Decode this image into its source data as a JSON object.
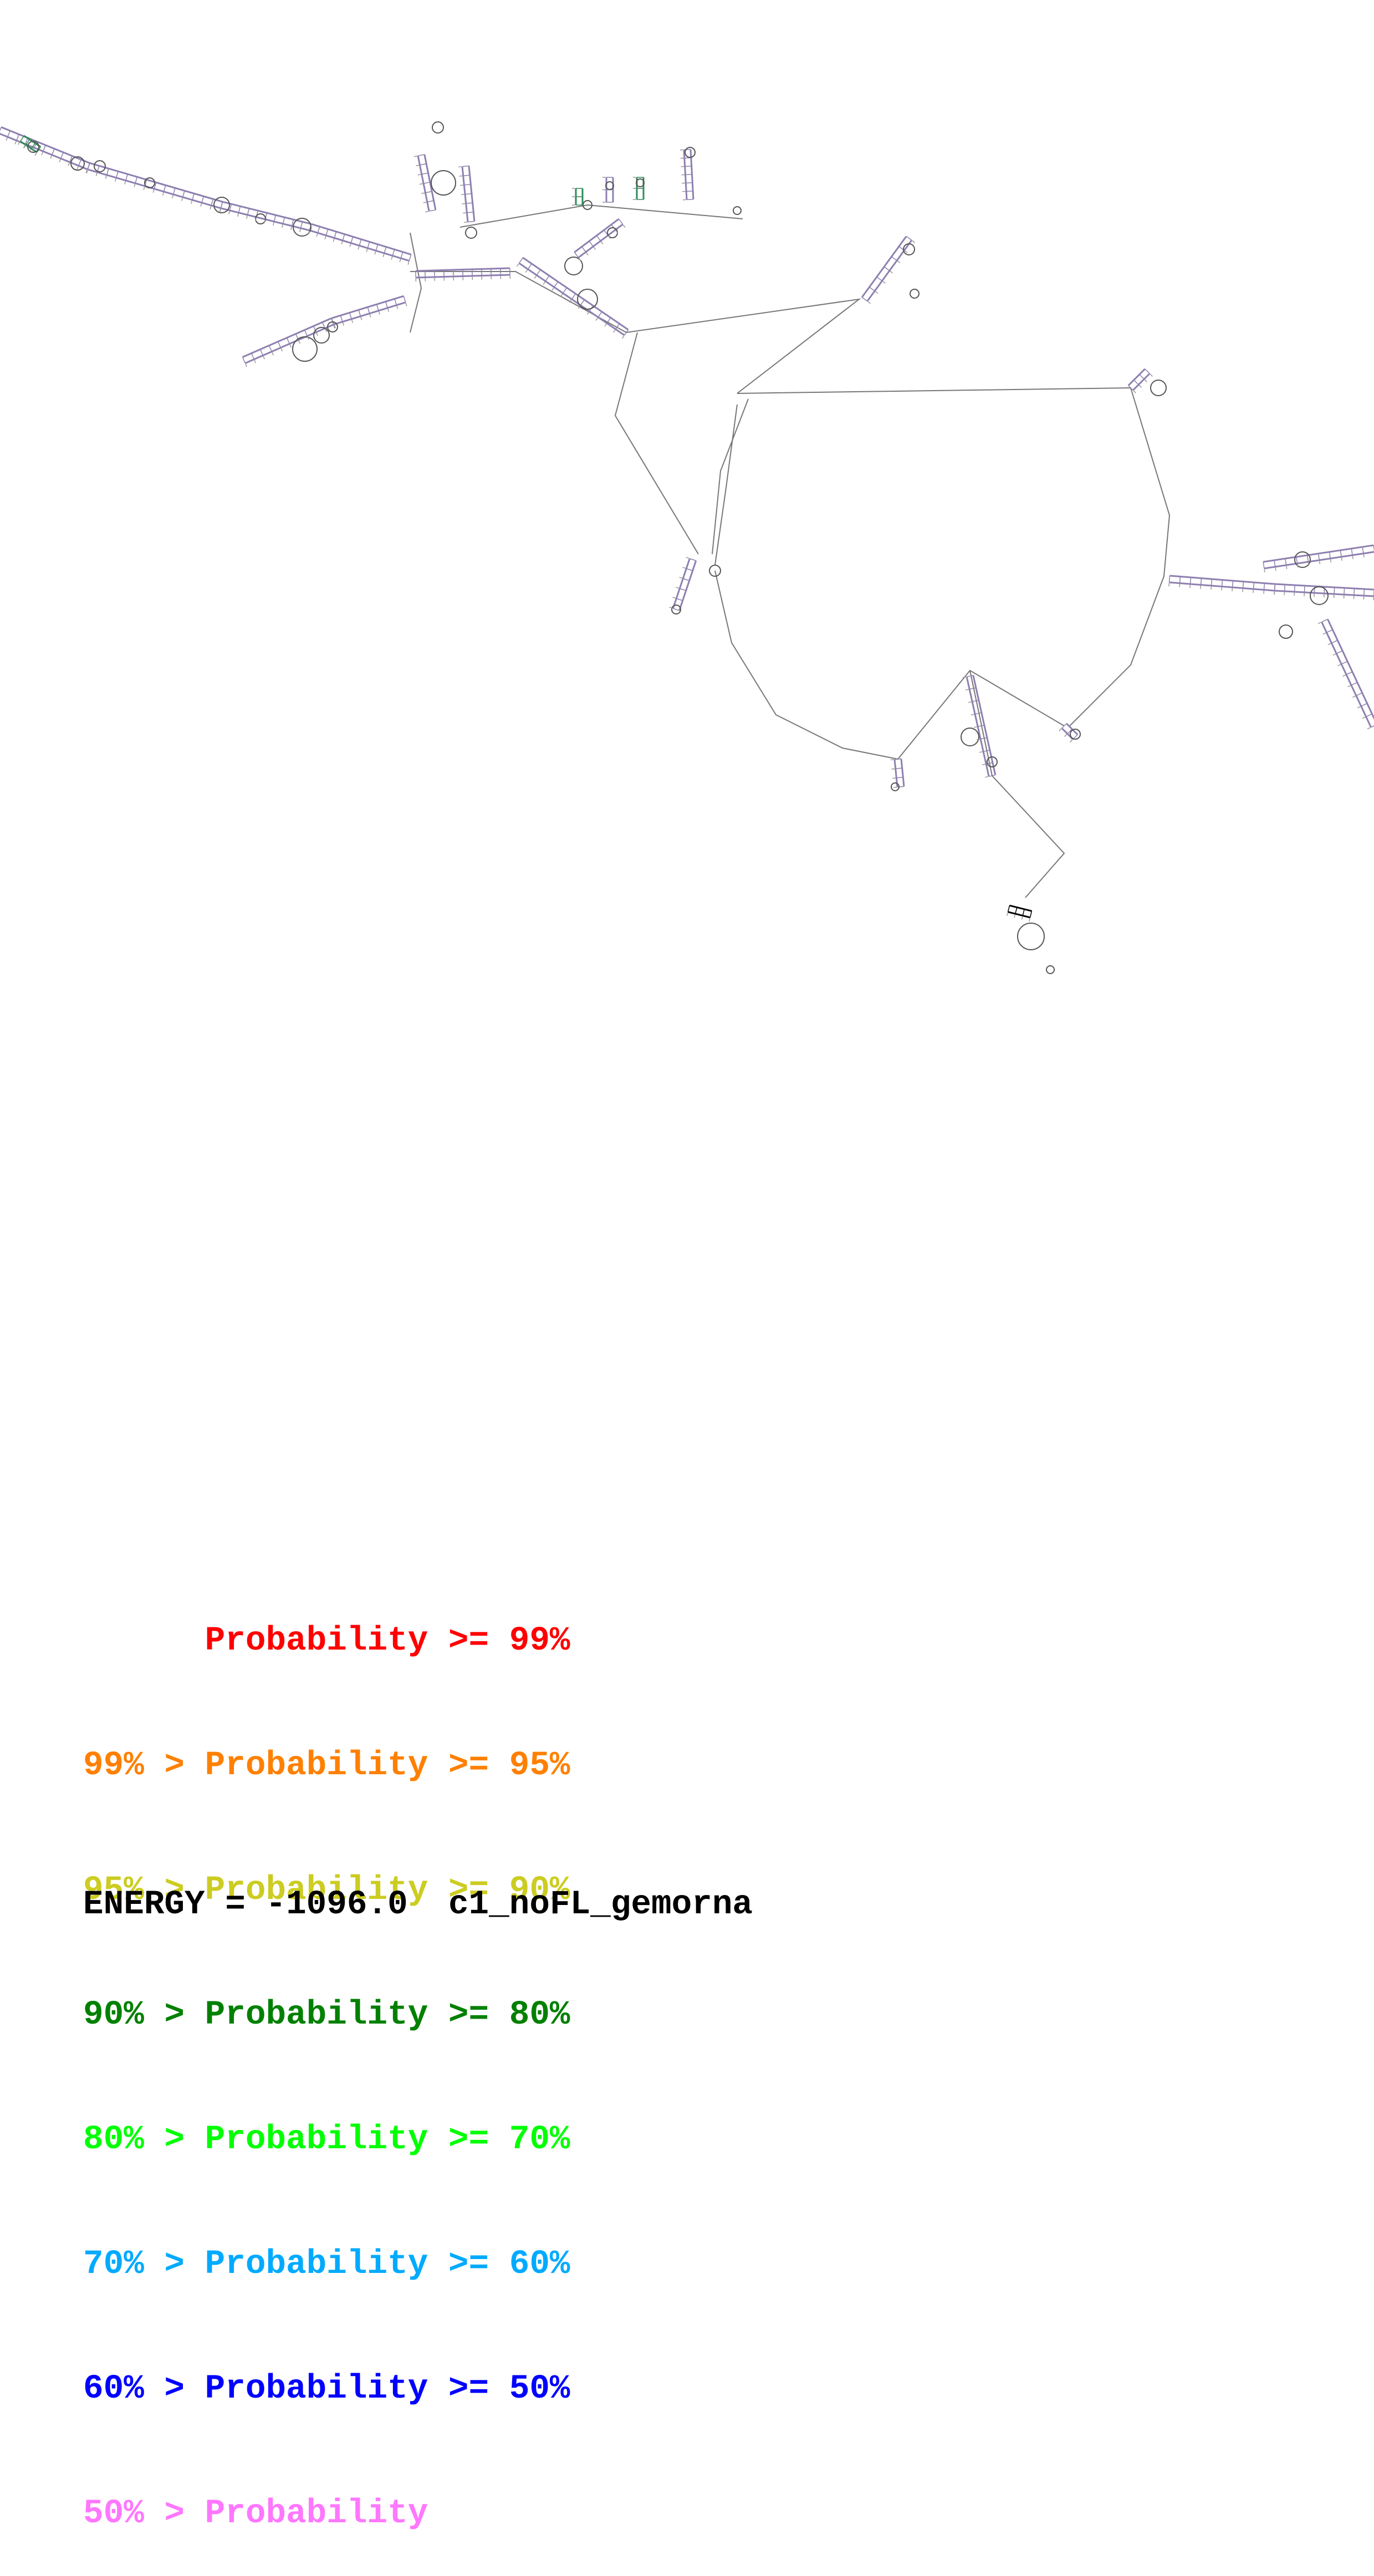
{
  "legend": [
    {
      "text": "      Probability >= 99%",
      "color": "#ff0000"
    },
    {
      "text": "99% > Probability >= 95%",
      "color": "#ff8000"
    },
    {
      "text": "95% > Probability >= 90%",
      "color": "#cccc22"
    },
    {
      "text": "90% > Probability >= 80%",
      "color": "#008000"
    },
    {
      "text": "80% > Probability >= 70%",
      "color": "#00ff00"
    },
    {
      "text": "70% > Probability >= 60%",
      "color": "#00aaff"
    },
    {
      "text": "60% > Probability >= 50%",
      "color": "#0000ff"
    },
    {
      "text": "50% > Probability",
      "color": "#ff77ff"
    }
  ],
  "energy": {
    "label": "ENERGY = ",
    "value": "-1096.0",
    "name": "c1_noFL_gemorna"
  },
  "colors": {
    "backbone": "#666666",
    "pair_default": "#8e7fb0",
    "pair_highlight": "#2e8b57",
    "text": "#000000"
  }
}
